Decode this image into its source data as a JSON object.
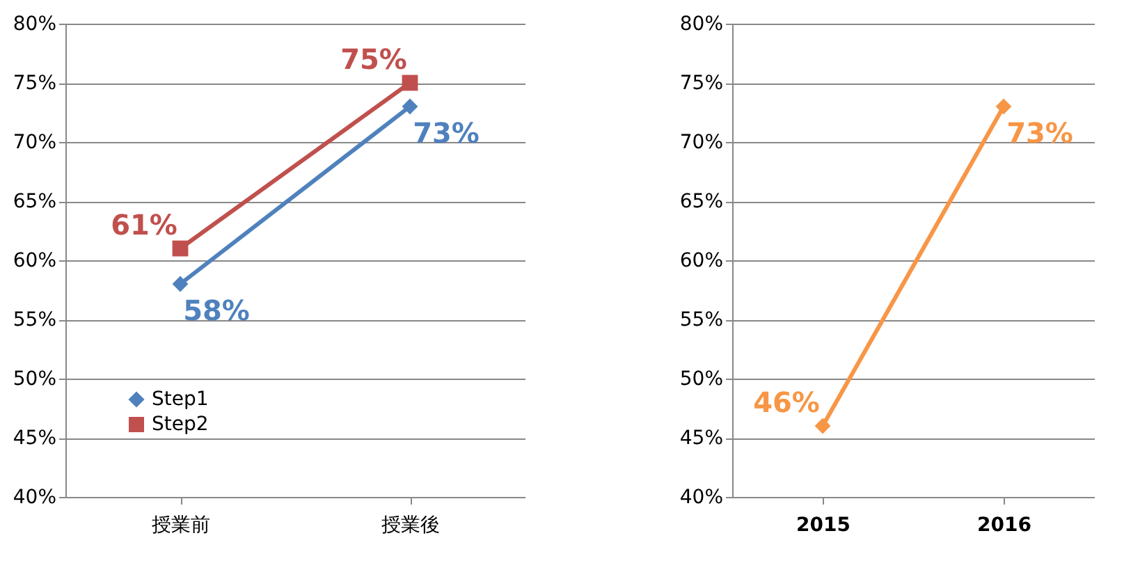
{
  "chart_data": [
    {
      "type": "line",
      "categories": [
        "授業前",
        "授業後"
      ],
      "series": [
        {
          "name": "Step1",
          "color": "#4f81bd",
          "marker": "diamond",
          "values": [
            58,
            73
          ],
          "value_labels": [
            "58%",
            "73%"
          ]
        },
        {
          "name": "Step2",
          "color": "#c0504d",
          "marker": "square",
          "values": [
            61,
            75
          ],
          "value_labels": [
            "61%",
            "75%"
          ]
        }
      ],
      "ylim": [
        40,
        80
      ],
      "yticks": [
        {
          "value": 40,
          "label": "40%"
        },
        {
          "value": 45,
          "label": "45%"
        },
        {
          "value": 50,
          "label": "50%"
        },
        {
          "value": 55,
          "label": "55%"
        },
        {
          "value": 60,
          "label": "60%"
        },
        {
          "value": 65,
          "label": "65%"
        },
        {
          "value": 70,
          "label": "70%"
        },
        {
          "value": 75,
          "label": "75%"
        },
        {
          "value": 80,
          "label": "80%"
        }
      ],
      "grid": "y",
      "legend": "bottom left"
    },
    {
      "type": "line",
      "categories": [
        "2015",
        "2016"
      ],
      "series": [
        {
          "color": "#f79646",
          "marker": "diamond",
          "values": [
            46,
            73
          ],
          "value_labels": [
            "46%",
            "73%"
          ]
        }
      ],
      "ylim": [
        40,
        80
      ],
      "yticks": [
        {
          "value": 40,
          "label": "40%"
        },
        {
          "value": 45,
          "label": "45%"
        },
        {
          "value": 50,
          "label": "50%"
        },
        {
          "value": 55,
          "label": "55%"
        },
        {
          "value": 60,
          "label": "60%"
        },
        {
          "value": 65,
          "label": "65%"
        },
        {
          "value": 70,
          "label": "70%"
        },
        {
          "value": 75,
          "label": "75%"
        },
        {
          "value": 80,
          "label": "80%"
        }
      ],
      "grid": "y"
    }
  ]
}
